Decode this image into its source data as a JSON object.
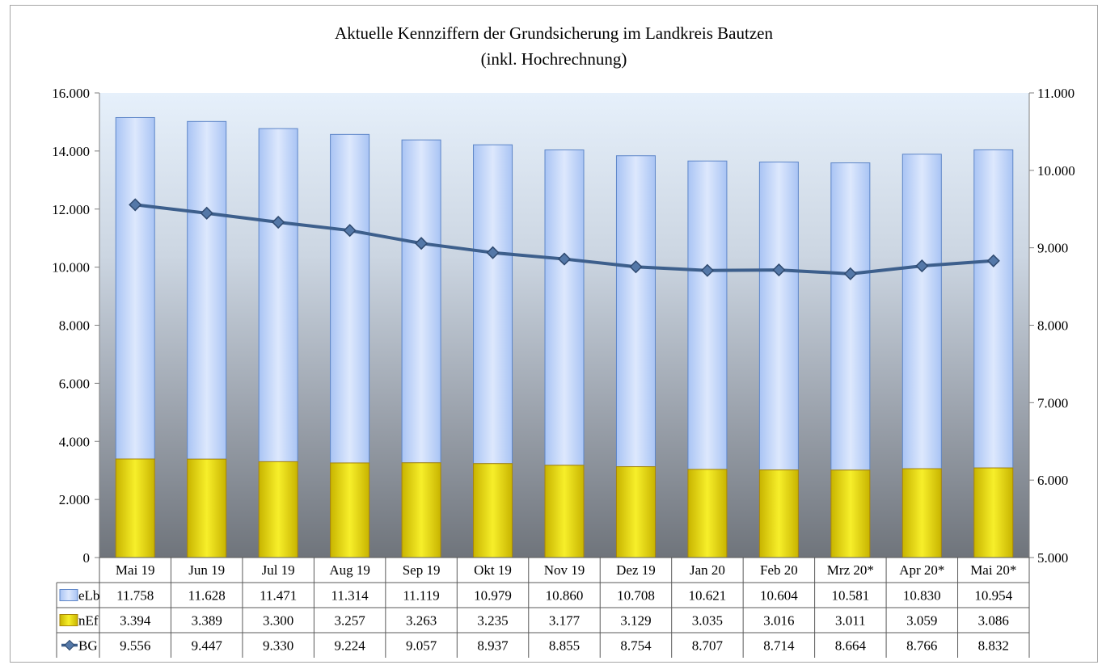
{
  "chart_data": {
    "type": "bar",
    "title": "Aktuelle Kennziffern der Grundsicherung im Landkreis Bautzen",
    "subtitle": "(inkl. Hochrechnung)",
    "categories": [
      "Mai 19",
      "Jun 19",
      "Jul 19",
      "Aug 19",
      "Sep 19",
      "Okt 19",
      "Nov 19",
      "Dez 19",
      "Jan 20",
      "Feb 20",
      "Mrz 20*",
      "Apr 20*",
      "Mai 20*"
    ],
    "stacked": true,
    "series": [
      {
        "name": "nEf",
        "type": "bar",
        "axis": "left",
        "color": "#f2e600",
        "values": [
          3394,
          3389,
          3300,
          3257,
          3263,
          3235,
          3177,
          3129,
          3035,
          3016,
          3011,
          3059,
          3086
        ],
        "labels": [
          "3.394",
          "3.389",
          "3.300",
          "3.257",
          "3.263",
          "3.235",
          "3.177",
          "3.129",
          "3.035",
          "3.016",
          "3.011",
          "3.059",
          "3.086"
        ]
      },
      {
        "name": "eLb",
        "type": "bar",
        "axis": "left",
        "color": "#c5dafc",
        "values": [
          11758,
          11628,
          11471,
          11314,
          11119,
          10979,
          10860,
          10708,
          10621,
          10604,
          10581,
          10830,
          10954
        ],
        "labels": [
          "11.758",
          "11.628",
          "11.471",
          "11.314",
          "11.119",
          "10.979",
          "10.860",
          "10.708",
          "10.621",
          "10.604",
          "10.581",
          "10.830",
          "10.954"
        ]
      },
      {
        "name": "BG",
        "type": "line",
        "axis": "right",
        "color": "#3d5f8c",
        "marker": "diamond",
        "values": [
          9556,
          9447,
          9330,
          9224,
          9057,
          8937,
          8855,
          8754,
          8707,
          8714,
          8664,
          8766,
          8832
        ],
        "labels": [
          "9.556",
          "9.447",
          "9.330",
          "9.224",
          "9.057",
          "8.937",
          "8.855",
          "8.754",
          "8.707",
          "8.714",
          "8.664",
          "8.766",
          "8.832"
        ]
      }
    ],
    "y_left": {
      "min": 0,
      "max": 16000,
      "ticks": [
        "0",
        "2.000",
        "4.000",
        "6.000",
        "8.000",
        "10.000",
        "12.000",
        "14.000",
        "16.000"
      ]
    },
    "y_right": {
      "min": 5000,
      "max": 11000,
      "ticks": [
        "5.000",
        "6.000",
        "7.000",
        "8.000",
        "9.000",
        "10.000",
        "11.000"
      ]
    },
    "table_row_order": [
      "eLb",
      "nEf",
      "BG"
    ],
    "grid": false,
    "legend": "data-table"
  }
}
